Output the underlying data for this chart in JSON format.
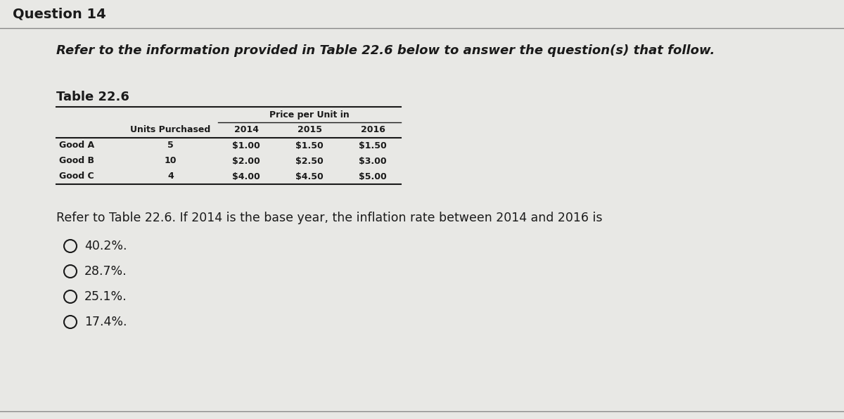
{
  "question_label": "Question 14",
  "intro_text": "Refer to the information provided in Table 22.6 below to answer the question(s) that follow.",
  "table_title": "Table 22.6",
  "table_header_top": "Price per Unit in",
  "table_col_headers": [
    "Units Purchased",
    "2014",
    "2015",
    "2016"
  ],
  "table_rows": [
    [
      "Good A",
      "5",
      "$1.00",
      "$1.50",
      "$1.50"
    ],
    [
      "Good B",
      "10",
      "$2.00",
      "$2.50",
      "$3.00"
    ],
    [
      "Good C",
      "4",
      "$4.00",
      "$4.50",
      "$5.00"
    ]
  ],
  "question_text": "Refer to Table 22.6. If 2014 is the base year, the inflation rate between 2014 and 2016 is",
  "choices": [
    "40.2%.",
    "28.7%.",
    "25.1%.",
    "17.4%."
  ],
  "bg_color": "#e8e8e5",
  "text_color": "#1a1a1a",
  "line_color": "#888888",
  "table_border_color": "#1a1a1a"
}
